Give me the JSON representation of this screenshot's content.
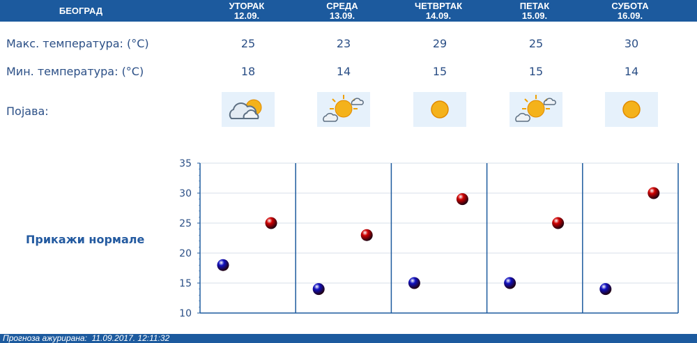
{
  "header": {
    "city": "БЕОГРАД",
    "days": [
      {
        "name": "УТОРАК",
        "date": "12.09."
      },
      {
        "name": "СРЕДА",
        "date": "13.09."
      },
      {
        "name": "ЧЕТВРТАК",
        "date": "14.09."
      },
      {
        "name": "ПЕТАК",
        "date": "15.09."
      },
      {
        "name": "СУБОТА",
        "date": "16.09."
      }
    ]
  },
  "rows": {
    "max_label": "Макс. температура: (°C)",
    "min_label": "Мин. температура: (°C)",
    "phenomenon_label": "Појава:",
    "max": [
      "25",
      "23",
      "29",
      "25",
      "30"
    ],
    "min": [
      "18",
      "14",
      "15",
      "15",
      "14"
    ],
    "icons": [
      "cloud-sun-icon",
      "partly-cloudy-icon",
      "sun-icon",
      "partly-cloudy-icon",
      "sun-icon"
    ]
  },
  "show_normals": "Прикажи нормале",
  "footer_text": "Прогноза ажурирана:  11.09.2017. 12:11:32",
  "colors": {
    "accent": "#1c5a9e",
    "max_marker": "#d00000",
    "min_marker": "#1010c0"
  },
  "chart_data": {
    "type": "scatter",
    "ylim": [
      10,
      35
    ],
    "yticks": [
      "10",
      "15",
      "20",
      "25",
      "30",
      "35"
    ],
    "categories": [
      "12.09.",
      "13.09.",
      "14.09.",
      "15.09.",
      "16.09."
    ],
    "series": [
      {
        "values": [
          18,
          14,
          15,
          15,
          14
        ],
        "color": "#1010c0"
      },
      {
        "values": [
          25,
          23,
          29,
          25,
          30
        ],
        "color": "#d00000"
      }
    ],
    "grid": true
  }
}
